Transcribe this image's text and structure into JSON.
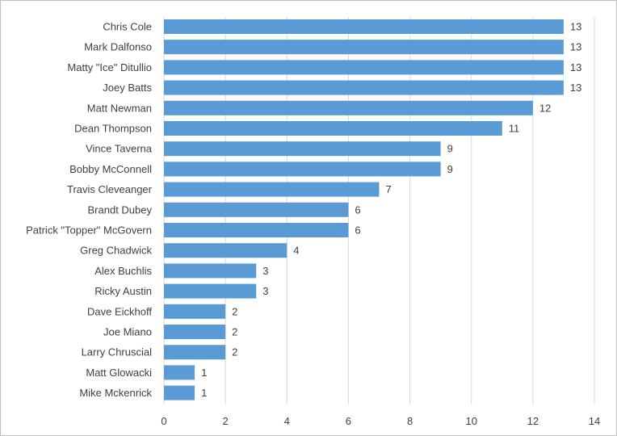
{
  "chart_data": {
    "type": "bar",
    "orientation": "horizontal",
    "categories": [
      "Chris Cole",
      "Mark Dalfonso",
      "Matty \"Ice\" Ditullio",
      "Joey Batts",
      "Matt Newman",
      "Dean Thompson",
      "Vince Taverna",
      "Bobby McConnell",
      "Travis Cleveanger",
      "Brandt Dubey",
      "Patrick \"Topper\" McGovern",
      "Greg Chadwick",
      "Alex Buchlis",
      "Ricky Austin",
      "Dave Eickhoff",
      "Joe Miano",
      "Larry Chruscial",
      "Matt Glowacki",
      "Mike Mckenrick"
    ],
    "values": [
      13,
      13,
      13,
      13,
      12,
      11,
      9,
      9,
      7,
      6,
      6,
      4,
      3,
      3,
      2,
      2,
      2,
      1,
      1
    ],
    "xticks": [
      "0",
      "2",
      "4",
      "6",
      "8",
      "10",
      "12",
      "14"
    ],
    "xlim": [
      0,
      14
    ],
    "title": "",
    "xlabel": "",
    "ylabel": "",
    "grid": "vertical",
    "legend": "none",
    "data_labels": true,
    "bar_color": "#5b9bd5",
    "grid_color": "#d9d9d9",
    "text_color": "#404040"
  }
}
